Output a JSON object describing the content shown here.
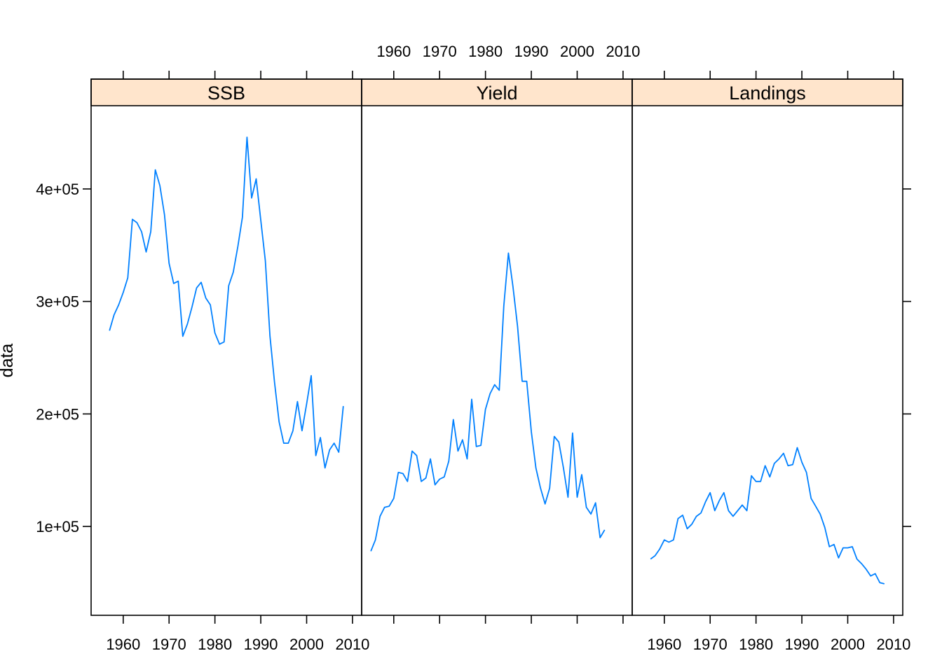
{
  "colors": {
    "strip_bg": "#ffe5cc",
    "line": "#0080ff",
    "frame": "#000000"
  },
  "chart_data": {
    "type": "line",
    "layout": "trellis 3 panels in one row, shared y axis",
    "xlabel": "",
    "ylabel": "data",
    "xlim": [
      1953,
      2012
    ],
    "ylim": [
      21000,
      474000
    ],
    "x_ticks": [
      1960,
      1970,
      1980,
      1990,
      2000,
      2010
    ],
    "x_tick_labels": [
      "1960",
      "1970",
      "1980",
      "1990",
      "2000",
      "2010"
    ],
    "y_ticks": [
      100000,
      200000,
      300000,
      400000
    ],
    "y_tick_labels": [
      "1e+05",
      "2e+05",
      "3e+05",
      "4e+05"
    ],
    "panels": [
      {
        "name": "SSB",
        "x": [
          1957,
          1958,
          1959,
          1960,
          1961,
          1962,
          1963,
          1964,
          1965,
          1966,
          1967,
          1968,
          1969,
          1970,
          1971,
          1972,
          1973,
          1974,
          1975,
          1976,
          1977,
          1978,
          1979,
          1980,
          1981,
          1982,
          1983,
          1984,
          1985,
          1986,
          1987,
          1988,
          1989,
          1990,
          1991,
          1992,
          1993,
          1994,
          1995,
          1996,
          1997,
          1998,
          1999,
          2000,
          2001,
          2002,
          2003,
          2004,
          2005,
          2006,
          2007,
          2008
        ],
        "values": [
          274000,
          288000,
          297000,
          308000,
          321000,
          373000,
          370000,
          362000,
          344000,
          362000,
          417000,
          403000,
          377000,
          334000,
          316000,
          318000,
          269000,
          280000,
          295000,
          312000,
          317000,
          303000,
          297000,
          272000,
          262000,
          264000,
          314000,
          326000,
          349000,
          375000,
          446000,
          392000,
          409000,
          372000,
          336000,
          269000,
          228000,
          193000,
          174000,
          174000,
          185000,
          211000,
          185000,
          209000,
          234000,
          163000,
          179000,
          152000,
          168000,
          174000,
          166000,
          207000
        ]
      },
      {
        "name": "Yield",
        "x": [
          1955,
          1956,
          1957,
          1958,
          1959,
          1960,
          1961,
          1962,
          1963,
          1964,
          1965,
          1966,
          1967,
          1968,
          1969,
          1970,
          1971,
          1972,
          1973,
          1974,
          1975,
          1976,
          1977,
          1978,
          1979,
          1980,
          1981,
          1982,
          1983,
          1984,
          1985,
          1986,
          1987,
          1988,
          1989,
          1990,
          1991,
          1992,
          1993,
          1994,
          1995,
          1996,
          1997,
          1998,
          1999,
          2000,
          2001,
          2002,
          2003,
          2004,
          2005,
          2006
        ],
        "values": [
          78000,
          88000,
          109000,
          117000,
          118000,
          125000,
          148000,
          147000,
          140000,
          167000,
          163000,
          140000,
          143000,
          160000,
          137000,
          142000,
          144000,
          158000,
          195000,
          167000,
          177000,
          160000,
          213000,
          171000,
          172000,
          204000,
          218000,
          226000,
          221000,
          296000,
          343000,
          313000,
          278000,
          229000,
          229000,
          184000,
          152000,
          134000,
          120000,
          134000,
          180000,
          175000,
          152000,
          126000,
          183000,
          126000,
          146000,
          117000,
          111000,
          121000,
          90000,
          97000
        ]
      },
      {
        "name": "Landings",
        "x": [
          1957,
          1958,
          1959,
          1960,
          1961,
          1962,
          1963,
          1964,
          1965,
          1966,
          1967,
          1968,
          1969,
          1970,
          1971,
          1972,
          1973,
          1974,
          1975,
          1976,
          1977,
          1978,
          1979,
          1980,
          1981,
          1982,
          1983,
          1984,
          1985,
          1986,
          1987,
          1988,
          1989,
          1990,
          1991,
          1992,
          1993,
          1994,
          1995,
          1996,
          1997,
          1998,
          1999,
          2000,
          2001,
          2002,
          2003,
          2004,
          2005,
          2006,
          2007,
          2008
        ],
        "values": [
          71000,
          74000,
          80000,
          88000,
          86000,
          88000,
          107000,
          110000,
          98000,
          102000,
          109000,
          112000,
          122000,
          130000,
          114000,
          123000,
          130000,
          114000,
          109000,
          114000,
          119000,
          114000,
          145000,
          140000,
          140000,
          154000,
          144000,
          156000,
          160000,
          165000,
          154000,
          155000,
          170000,
          157000,
          148000,
          125000,
          118000,
          111000,
          99000,
          82000,
          84000,
          72000,
          81000,
          81000,
          82000,
          71000,
          67000,
          62000,
          56000,
          58000,
          50000,
          49000
        ]
      }
    ]
  }
}
